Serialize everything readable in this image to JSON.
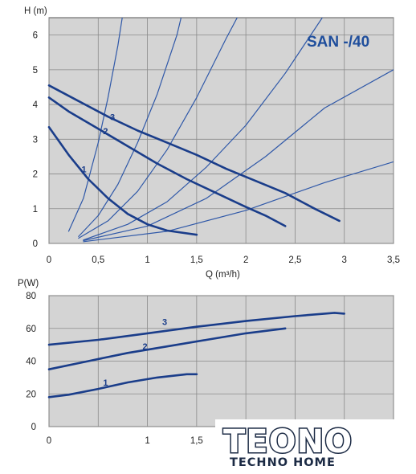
{
  "chart_data": [
    {
      "type": "line",
      "title": "SAN -/40",
      "xlabel": "Q (m³/h)",
      "ylabel": "H (m)",
      "xlim": [
        0,
        3.5
      ],
      "ylim": [
        0,
        6.5
      ],
      "grid": true,
      "x_ticks": [
        "0",
        "0,5",
        "1",
        "1,5",
        "2",
        "2,5",
        "3",
        "3,5"
      ],
      "y_ticks": [
        "0",
        "1",
        "2",
        "3",
        "4",
        "5",
        "6"
      ],
      "series": [
        {
          "label": "1",
          "points": [
            [
              0,
              3.35
            ],
            [
              0.2,
              2.55
            ],
            [
              0.4,
              1.85
            ],
            [
              0.6,
              1.3
            ],
            [
              0.8,
              0.85
            ],
            [
              1.0,
              0.55
            ],
            [
              1.2,
              0.37
            ],
            [
              1.5,
              0.25
            ]
          ]
        },
        {
          "label": "2",
          "points": [
            [
              0,
              4.2
            ],
            [
              0.2,
              3.8
            ],
            [
              0.5,
              3.3
            ],
            [
              0.8,
              2.8
            ],
            [
              1.1,
              2.3
            ],
            [
              1.4,
              1.85
            ],
            [
              1.7,
              1.45
            ],
            [
              2.0,
              1.05
            ],
            [
              2.2,
              0.8
            ],
            [
              2.4,
              0.5
            ]
          ]
        },
        {
          "label": "3",
          "points": [
            [
              0,
              4.55
            ],
            [
              0.3,
              4.1
            ],
            [
              0.6,
              3.65
            ],
            [
              0.9,
              3.25
            ],
            [
              1.2,
              2.9
            ],
            [
              1.5,
              2.55
            ],
            [
              1.8,
              2.15
            ],
            [
              2.1,
              1.8
            ],
            [
              2.4,
              1.45
            ],
            [
              2.7,
              1.0
            ],
            [
              2.95,
              0.65
            ]
          ]
        }
      ],
      "system_curves": [
        [
          [
            0.2,
            0.35
          ],
          [
            0.35,
            1.3
          ],
          [
            0.5,
            2.9
          ],
          [
            0.6,
            4.2
          ],
          [
            0.7,
            5.7
          ],
          [
            0.75,
            6.6
          ]
        ],
        [
          [
            0.3,
            0.2
          ],
          [
            0.5,
            0.8
          ],
          [
            0.7,
            1.7
          ],
          [
            0.9,
            2.9
          ],
          [
            1.1,
            4.3
          ],
          [
            1.3,
            6.0
          ],
          [
            1.35,
            6.6
          ]
        ],
        [
          [
            0.3,
            0.15
          ],
          [
            0.6,
            0.65
          ],
          [
            0.9,
            1.5
          ],
          [
            1.2,
            2.7
          ],
          [
            1.5,
            4.2
          ],
          [
            1.8,
            5.9
          ],
          [
            1.93,
            6.6
          ]
        ],
        [
          [
            0.35,
            0.1
          ],
          [
            0.8,
            0.55
          ],
          [
            1.2,
            1.2
          ],
          [
            1.6,
            2.2
          ],
          [
            2.0,
            3.4
          ],
          [
            2.4,
            4.9
          ],
          [
            2.8,
            6.6
          ]
        ],
        [
          [
            0.35,
            0.08
          ],
          [
            1.0,
            0.5
          ],
          [
            1.6,
            1.3
          ],
          [
            2.2,
            2.5
          ],
          [
            2.8,
            3.9
          ],
          [
            3.5,
            5.0
          ]
        ],
        [
          [
            0.35,
            0.05
          ],
          [
            1.2,
            0.35
          ],
          [
            2.0,
            0.95
          ],
          [
            2.8,
            1.75
          ],
          [
            3.5,
            2.35
          ]
        ]
      ]
    },
    {
      "type": "line",
      "title": "",
      "xlabel": "",
      "ylabel": "P(W)",
      "xlim": [
        0,
        3.5
      ],
      "ylim": [
        0,
        80
      ],
      "grid": true,
      "x_ticks": [
        "0",
        "1",
        "1,5"
      ],
      "y_ticks": [
        "0",
        "20",
        "40",
        "60",
        "80"
      ],
      "series": [
        {
          "label": "1",
          "points": [
            [
              0,
              18
            ],
            [
              0.2,
              19.5
            ],
            [
              0.5,
              23
            ],
            [
              0.8,
              27
            ],
            [
              1.1,
              30
            ],
            [
              1.4,
              32
            ],
            [
              1.5,
              32
            ]
          ]
        },
        {
          "label": "2",
          "points": [
            [
              0,
              35
            ],
            [
              0.4,
              40
            ],
            [
              0.8,
              45
            ],
            [
              1.2,
              49
            ],
            [
              1.6,
              53
            ],
            [
              2.0,
              57
            ],
            [
              2.4,
              60
            ]
          ]
        },
        {
          "label": "3",
          "points": [
            [
              0,
              50
            ],
            [
              0.5,
              53
            ],
            [
              1.0,
              57
            ],
            [
              1.5,
              61
            ],
            [
              2.0,
              64.5
            ],
            [
              2.5,
              67.5
            ],
            [
              2.9,
              69.5
            ],
            [
              3.0,
              69
            ]
          ]
        }
      ]
    }
  ],
  "logo": {
    "main": "TEONO",
    "sub": "TECHNO HOME"
  }
}
